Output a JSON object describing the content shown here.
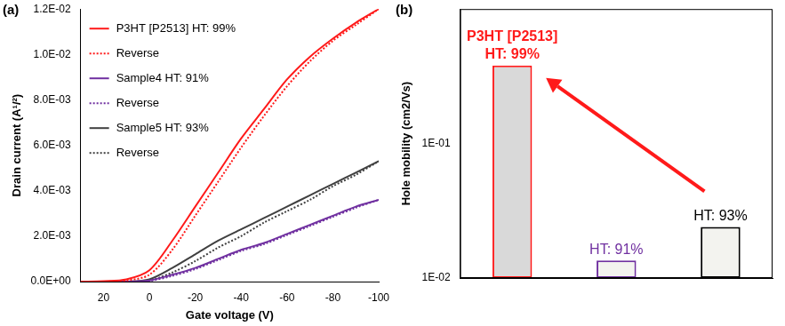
{
  "chart_data": [
    {
      "type": "line",
      "title": "(a)",
      "xlabel": "Gate voltage (V)",
      "ylabel": "Drain current (A¹/²)",
      "x": [
        30,
        20,
        10,
        0,
        -10,
        -20,
        -30,
        -40,
        -50,
        -60,
        -70,
        -80,
        -90,
        -100
      ],
      "series": [
        {
          "name": "P3HT [P2513] HT: 99%",
          "color": "#ff1a1a",
          "line_style": "solid",
          "values": [
            0,
            2e-05,
            0.0001,
            0.0005,
            0.0018,
            0.0033,
            0.0048,
            0.0063,
            0.0076,
            0.0089,
            0.0099,
            0.0107,
            0.0114,
            0.012
          ]
        },
        {
          "name": "Reverse",
          "color": "#ff1a1a",
          "line_style": "dotted",
          "values": [
            0,
            0,
            5e-05,
            0.0003,
            0.0014,
            0.0029,
            0.0044,
            0.0059,
            0.0073,
            0.0086,
            0.0097,
            0.0106,
            0.0113,
            0.012
          ]
        },
        {
          "name": "Sample4 HT: 91%",
          "color": "#7030a0",
          "line_style": "solid",
          "values": [
            0,
            0,
            0,
            5e-05,
            0.0003,
            0.0006,
            0.001,
            0.0014,
            0.0017,
            0.0021,
            0.0025,
            0.0029,
            0.0033,
            0.0036
          ]
        },
        {
          "name": "Reverse",
          "color": "#7030a0",
          "line_style": "dotted",
          "values": [
            0,
            0,
            0,
            3e-05,
            0.00025,
            0.00055,
            0.00095,
            0.00135,
            0.00165,
            0.00205,
            0.00245,
            0.00285,
            0.00325,
            0.0036
          ]
        },
        {
          "name": "Sample5 HT: 93%",
          "color": "#404040",
          "line_style": "solid",
          "values": [
            0,
            0,
            0,
            0.0001,
            0.0006,
            0.0012,
            0.0018,
            0.0023,
            0.0028,
            0.0033,
            0.0038,
            0.0043,
            0.0048,
            0.0053
          ]
        },
        {
          "name": "Reverse",
          "color": "#404040",
          "line_style": "dotted",
          "values": [
            0,
            0,
            0,
            5e-05,
            0.0004,
            0.0009,
            0.0015,
            0.002,
            0.0026,
            0.0031,
            0.0036,
            0.0042,
            0.0047,
            0.0053
          ]
        }
      ],
      "xlim": [
        30,
        -100
      ],
      "xticks": [
        20,
        0,
        -20,
        -40,
        -60,
        -80,
        -100
      ],
      "ylim": [
        0,
        0.012
      ],
      "yticks": [
        {
          "value": 0,
          "label": "0.0E+00"
        },
        {
          "value": 0.002,
          "label": "2.0E-03"
        },
        {
          "value": 0.004,
          "label": "4.0E-03"
        },
        {
          "value": 0.006,
          "label": "6.0E-03"
        },
        {
          "value": 0.008,
          "label": "8.0E-03"
        },
        {
          "value": 0.01,
          "label": "1.0E-02"
        },
        {
          "value": 0.012,
          "label": "1.2E-02"
        }
      ],
      "grid": false,
      "legend": "top-left"
    },
    {
      "type": "bar",
      "title": "(b)",
      "ylabel": "Hole mobility (cm2/Vs)",
      "categories": [
        null,
        null,
        null
      ],
      "values": [
        0.38,
        0.0135,
        0.024
      ],
      "colors": [
        "#ff1a1a",
        "#7030a0",
        "#000000"
      ],
      "annotations": [
        [
          "P3HT [P2513]",
          "HT: 99%"
        ],
        [
          "HT: 91%"
        ],
        [
          "HT: 93%"
        ]
      ],
      "log": "y",
      "ylim": [
        0.01,
        1
      ],
      "yticks": [
        {
          "value": 0.01,
          "label": "1E-02"
        },
        {
          "value": 0.1,
          "label": "1E-01"
        }
      ],
      "grid": false,
      "tick_labels": "y"
    }
  ]
}
